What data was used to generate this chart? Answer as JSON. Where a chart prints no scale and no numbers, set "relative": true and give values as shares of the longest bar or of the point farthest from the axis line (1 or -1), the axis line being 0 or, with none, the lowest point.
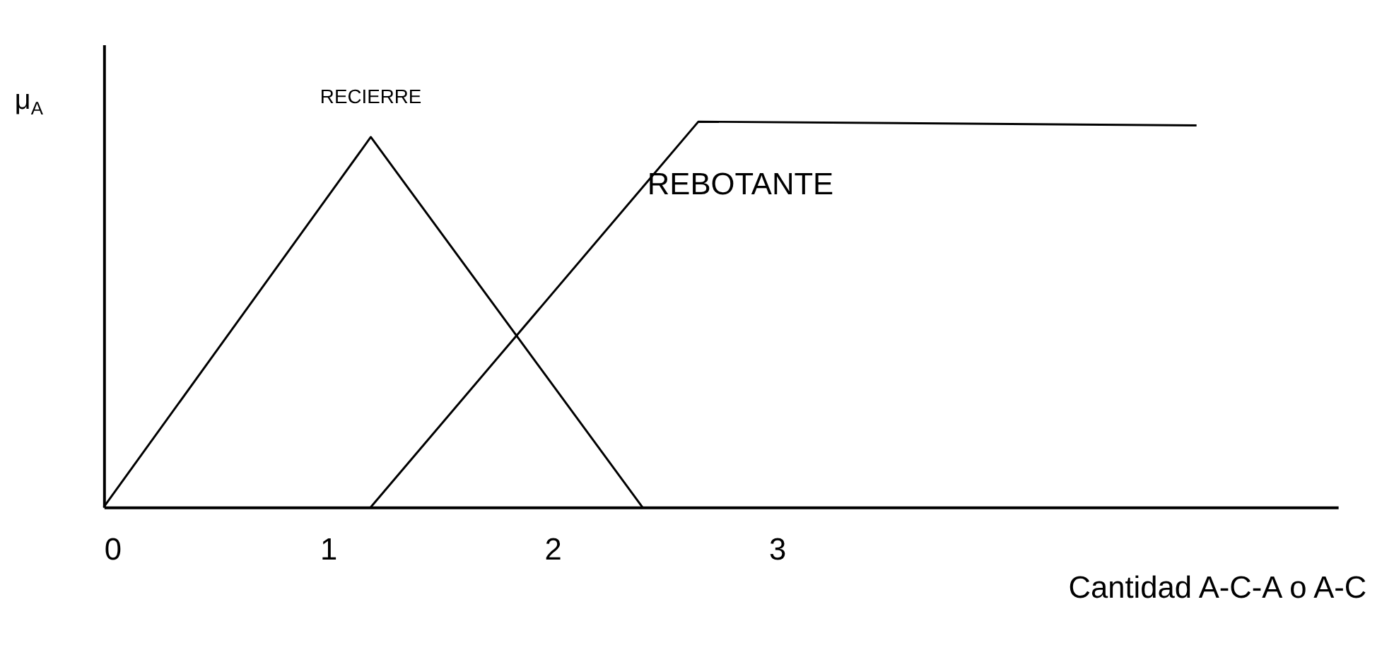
{
  "chart_data": {
    "type": "line",
    "relative": true,
    "xlabel": "Cantidad A-C-A o A-C",
    "ylabel": "μ$_{A}$",
    "xlim": [
      0,
      5.5
    ],
    "xticks": [
      0,
      1,
      2,
      3
    ],
    "grid": false,
    "marker": "none",
    "line_style": "solid",
    "series": [
      {
        "name": "RECIERRE",
        "color": "#000000",
        "x": [
          0,
          1.19,
          2.4
        ],
        "values": [
          0,
          0.96,
          0
        ]
      },
      {
        "name": "REBOTANTE",
        "color": "#000000",
        "x": [
          1.19,
          2.65,
          4.87
        ],
        "values": [
          0,
          1,
          0.99
        ]
      }
    ]
  }
}
